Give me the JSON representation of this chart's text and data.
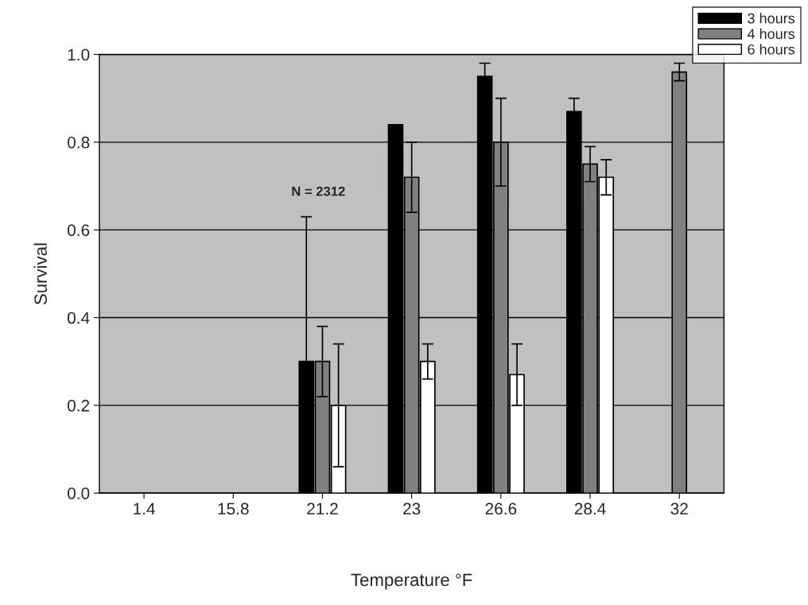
{
  "chart_data": {
    "type": "bar",
    "xlabel": "Temperature °F",
    "ylabel": "Survival",
    "categories": [
      "1.4",
      "15.8",
      "21.2",
      "23",
      "26.6",
      "28.4",
      "32"
    ],
    "series": [
      {
        "name": "3 hours",
        "color": "#000000",
        "values": [
          null,
          null,
          0.3,
          0.84,
          0.95,
          0.87,
          null
        ],
        "errors": [
          null,
          null,
          0.33,
          null,
          0.03,
          0.03,
          null
        ]
      },
      {
        "name": "4 hours",
        "color": "#808080",
        "values": [
          null,
          null,
          0.3,
          0.72,
          0.8,
          0.75,
          0.96
        ],
        "errors": [
          null,
          null,
          0.08,
          0.08,
          0.1,
          0.04,
          0.02
        ]
      },
      {
        "name": "6 hours",
        "color": "#ffffff",
        "values": [
          null,
          null,
          0.2,
          0.3,
          0.27,
          0.72,
          null
        ],
        "errors": [
          null,
          null,
          0.14,
          0.04,
          0.07,
          0.04,
          null
        ]
      }
    ],
    "ylim": [
      0,
      1.0
    ],
    "yticks": [
      {
        "value": 0,
        "label": "0.0"
      },
      {
        "value": 0.2,
        "label": "0.2"
      },
      {
        "value": 0.4,
        "label": "0.4"
      },
      {
        "value": 0.6,
        "label": "0.6"
      },
      {
        "value": 0.8,
        "label": "0.8"
      },
      {
        "value": 1.0,
        "label": "1.0"
      }
    ],
    "grid": "y",
    "legend": "top right",
    "annotations": [
      "N = 2312"
    ]
  }
}
